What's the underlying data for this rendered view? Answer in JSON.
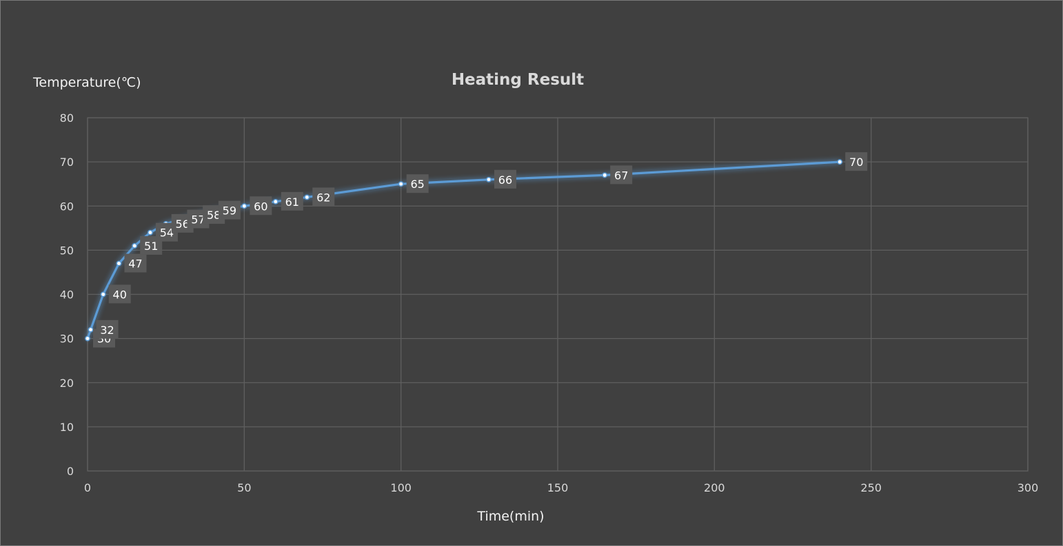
{
  "chart_data": {
    "type": "line",
    "title": "Heating Result",
    "xlabel": "Time(min)",
    "ylabel": "Temperature(℃)",
    "xlim": [
      0,
      300
    ],
    "ylim": [
      0,
      80
    ],
    "xticks": [
      0,
      50,
      100,
      150,
      200,
      250,
      300
    ],
    "yticks": [
      0,
      10,
      20,
      30,
      40,
      50,
      60,
      70,
      80
    ],
    "grid": true,
    "legend": "none",
    "series": [
      {
        "name": "Temperature",
        "color": "#5b9bd5",
        "x": [
          0,
          1,
          5,
          10,
          15,
          20,
          25,
          30,
          35,
          40,
          50,
          60,
          70,
          100,
          128,
          165,
          240
        ],
        "y": [
          30,
          32,
          40,
          47,
          51,
          54,
          56,
          57,
          58,
          59,
          60,
          61,
          62,
          65,
          66,
          67,
          70
        ],
        "labels": [
          "30",
          "32",
          "40",
          "47",
          "51",
          "54",
          "56",
          "57",
          "58",
          "59",
          "60",
          "61",
          "62",
          "65",
          "66",
          "67",
          "70"
        ]
      }
    ]
  }
}
